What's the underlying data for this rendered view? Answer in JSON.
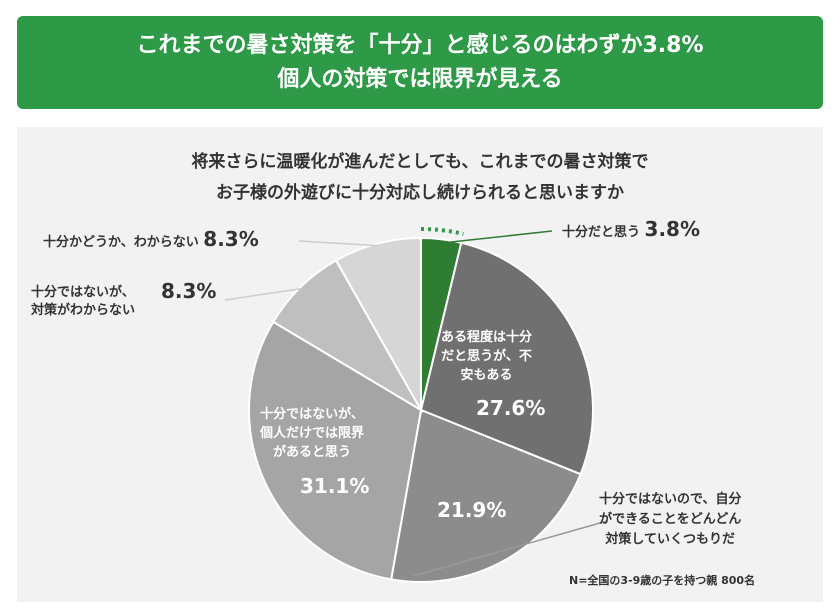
{
  "header": {
    "line1": "これまでの暑さ対策を「十分」と感じるのはわずか3.8%",
    "line2": "個人の対策では限界が見える"
  },
  "question": {
    "line1": "将来さらに温暖化が進んだとしても、これまでの暑さ対策で",
    "line2": "お子様の外遊びに十分対応し続けられると思いますか"
  },
  "note": "N=全国の3-9歳の子を持つ親 800名",
  "chart_data": {
    "type": "pie",
    "title": "将来さらに温暖化が進んだとしても、これまでの暑さ対策でお子様の外遊びに十分対応し続けられると思いますか",
    "slices": [
      {
        "label": "十分だと思う",
        "value": 3.8,
        "value_text": "3.8%",
        "color": "#2e7d32"
      },
      {
        "label": "ある程度は十分だと思うが、不安もある",
        "value": 27.6,
        "value_text": "27.6%",
        "color": "#707070"
      },
      {
        "label": "十分ではないので、自分ができることをどんどん対策していくつもりだ",
        "value": 21.9,
        "value_text": "21.9%",
        "color": "#8c8c8c"
      },
      {
        "label": "十分ではないが、個人だけでは限界があると思う",
        "value": 31.1,
        "value_text": "31.1%",
        "color": "#a5a5a5"
      },
      {
        "label": "十分ではないが、対策がわからない",
        "value": 8.3,
        "value_text": "8.3%",
        "color": "#bfbfbf"
      },
      {
        "label": "十分かどうか、わからない",
        "value": 8.3,
        "value_text": "8.3%",
        "color": "#d6d6d6"
      }
    ],
    "labels": {
      "s0": "十分だと思う",
      "s1": [
        "ある程度は十分",
        "だと思うが、不",
        "安もある"
      ],
      "s2": [
        "十分ではないので、自分",
        "ができることをどんどん",
        "対策していくつもりだ"
      ],
      "s3": [
        "十分ではないが、",
        "個人だけでは限界",
        "があると思う"
      ],
      "s4": [
        "十分ではないが、",
        "対策がわからない"
      ],
      "s5": "十分かどうか、わからない"
    }
  }
}
